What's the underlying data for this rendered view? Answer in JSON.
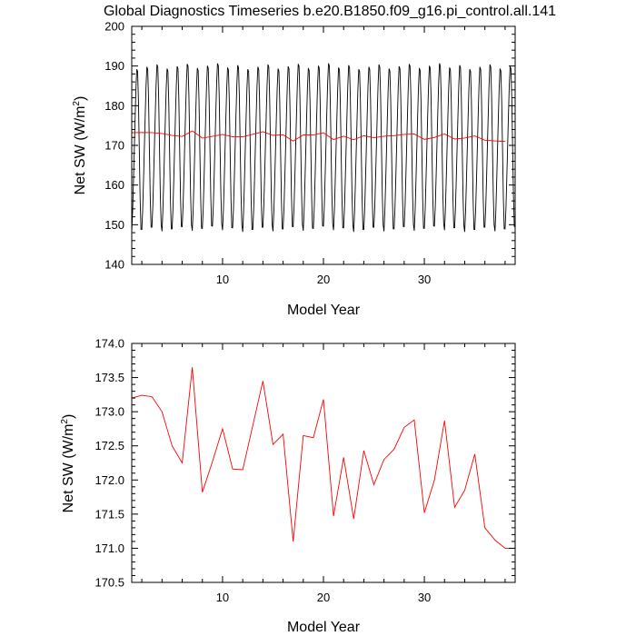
{
  "chart_data": [
    {
      "type": "line",
      "title": "Global Diagnostics Timeseries b.e20.B1850.f09_g16.pi_control.all.141",
      "xlabel": "Model Year",
      "ylabel_main": "Net SW (W/m",
      "ylabel_sup": "2",
      "ylabel_close": ")",
      "xlim": [
        1,
        39
      ],
      "ylim": [
        140,
        200
      ],
      "xticks": [
        10,
        20,
        30
      ],
      "yticks": [
        140,
        150,
        160,
        170,
        180,
        190,
        200
      ],
      "series": [
        {
          "color": "#000000",
          "description": "monthly values, seasonal cycle ~149 to ~190",
          "annual_min": 149.0,
          "annual_max": 190.0
        },
        {
          "color": "#ff0000",
          "x": [
            1,
            2,
            3,
            4,
            5,
            6,
            7,
            8,
            9,
            10,
            11,
            12,
            13,
            14,
            15,
            16,
            17,
            18,
            19,
            20,
            21,
            22,
            23,
            24,
            25,
            26,
            27,
            28,
            29,
            30,
            31,
            32,
            33,
            34,
            35,
            36,
            37,
            38
          ],
          "y": [
            173.2,
            173.24,
            173.22,
            173.0,
            172.5,
            172.25,
            173.65,
            171.82,
            172.27,
            172.75,
            172.16,
            172.15,
            172.8,
            173.45,
            172.52,
            172.67,
            171.1,
            172.65,
            172.62,
            173.18,
            171.47,
            172.33,
            171.43,
            172.43,
            171.93,
            172.3,
            172.45,
            172.77,
            172.88,
            171.52,
            172.0,
            172.87,
            171.6,
            171.85,
            172.38,
            171.3,
            171.12,
            171.0
          ]
        }
      ]
    },
    {
      "type": "line",
      "title": "",
      "xlabel": "Model Year",
      "ylabel_main": "Net SW (W/m",
      "ylabel_sup": "2",
      "ylabel_close": ")",
      "xlim": [
        1,
        39
      ],
      "ylim": [
        170.5,
        174.0
      ],
      "xticks": [
        10,
        20,
        30
      ],
      "yticks": [
        170.5,
        171.0,
        171.5,
        172.0,
        172.5,
        173.0,
        173.5,
        174.0
      ],
      "ytick_labels": [
        "170.5",
        "171.0",
        "171.5",
        "172.0",
        "172.5",
        "173.0",
        "173.5",
        "174.0"
      ],
      "series": [
        {
          "color": "#ff0000",
          "x": [
            1,
            2,
            3,
            4,
            5,
            6,
            7,
            8,
            9,
            10,
            11,
            12,
            13,
            14,
            15,
            16,
            17,
            18,
            19,
            20,
            21,
            22,
            23,
            24,
            25,
            26,
            27,
            28,
            29,
            30,
            31,
            32,
            33,
            34,
            35,
            36,
            37,
            38,
            39
          ],
          "y": [
            173.2,
            173.24,
            173.22,
            173.0,
            172.5,
            172.25,
            173.65,
            171.82,
            172.27,
            172.75,
            172.16,
            172.15,
            172.8,
            173.45,
            172.52,
            172.67,
            171.1,
            172.65,
            172.62,
            173.18,
            171.47,
            172.33,
            171.43,
            172.43,
            171.93,
            172.3,
            172.45,
            172.77,
            172.88,
            171.52,
            172.0,
            172.87,
            171.6,
            171.85,
            172.38,
            171.3,
            171.12,
            171.0,
            171.0
          ]
        }
      ]
    }
  ]
}
